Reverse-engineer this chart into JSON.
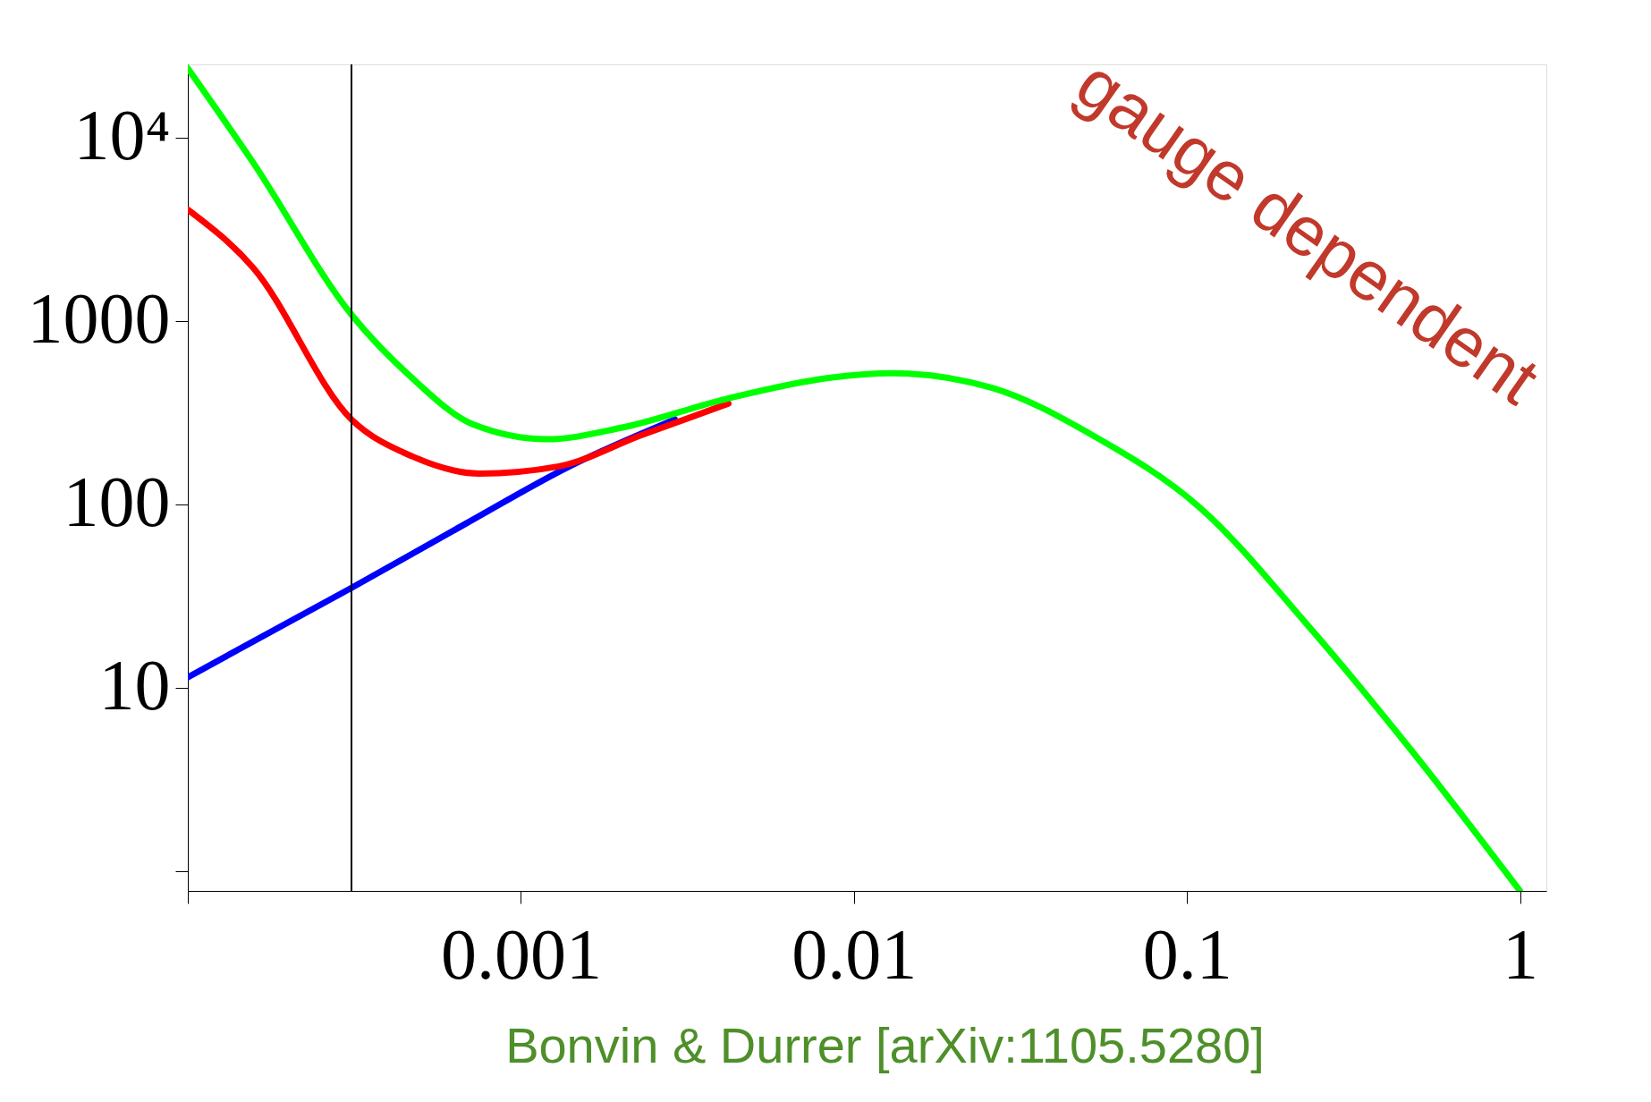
{
  "chart_data": {
    "type": "line",
    "annotations": [
      "gauge dependent",
      "Bonvin & Durrer [arXiv:1105.5280]"
    ],
    "series": [
      {
        "color": "#0000ff",
        "x": [
          0.0001,
          0.00031,
          0.00068,
          0.0014,
          0.0029
        ],
        "values": [
          11.4,
          35,
          78,
          161,
          290
        ]
      },
      {
        "color": "#ff0000",
        "x": [
          0.0001,
          0.000157,
          0.00031,
          0.00047,
          0.00075,
          0.0013,
          0.0023,
          0.0042
        ],
        "values": [
          4040,
          1950,
          290,
          183,
          147,
          161,
          238,
          354
        ]
      },
      {
        "color": "#00ff00",
        "x": [
          0.0001,
          0.000157,
          0.00031,
          0.00047,
          0.00072,
          0.0012,
          0.002,
          0.0042,
          0.0085,
          0.013,
          0.026,
          0.052,
          0.11,
          0.23,
          0.47,
          1
        ],
        "values": [
          23800,
          7300,
          1080,
          490,
          272,
          226,
          261,
          378,
          490,
          518,
          431,
          238,
          95,
          22,
          4.6,
          0.78
        ]
      }
    ],
    "log": "xy",
    "xlim": [
      0.0001,
      1.2
    ],
    "xticks": [
      {
        "value": 0.0001,
        "label": null
      },
      0.001,
      0.01,
      0.1,
      1
    ],
    "ylim": [
      0.78,
      25000
    ],
    "yticks": [
      {
        "value": 1,
        "label": null
      },
      10,
      100,
      1000,
      {
        "value": 10000,
        "label": "10⁴"
      }
    ],
    "ref_lines": [
      {
        "axis": "x",
        "value": 0.00031,
        "color": "#000000"
      }
    ],
    "grid": false,
    "marker": "none",
    "line_style": "solid"
  }
}
